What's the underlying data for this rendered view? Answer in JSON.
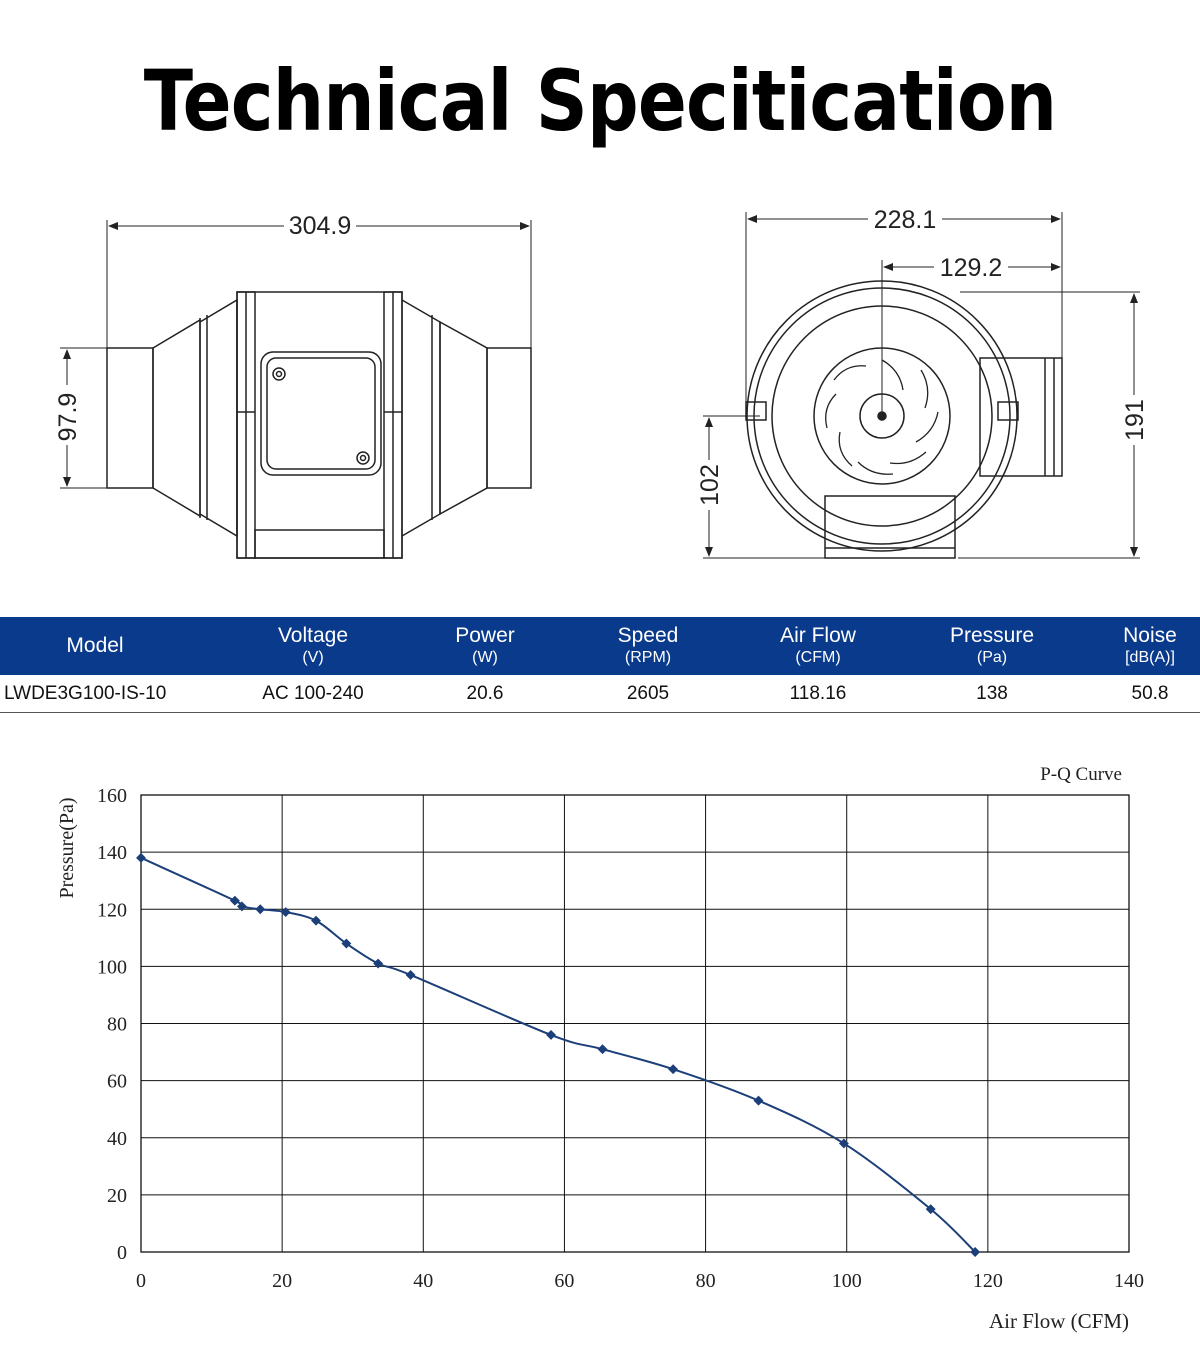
{
  "title": "Technical Specitication",
  "dimensions": {
    "side_length": "304.9",
    "side_diameter": "97.9",
    "front_width": "228.1",
    "front_center": "129.2",
    "front_height": "191",
    "front_axis_height": "102"
  },
  "spec_table": {
    "columns": [
      {
        "label": "Model",
        "unit": ""
      },
      {
        "label": "Voltage",
        "unit": "(V)"
      },
      {
        "label": "Power",
        "unit": "(W)"
      },
      {
        "label": "Speed",
        "unit": "(RPM)"
      },
      {
        "label": "Air Flow",
        "unit": "(CFM)"
      },
      {
        "label": "Pressure",
        "unit": "(Pa)"
      },
      {
        "label": "Noise",
        "unit": "[dB(A)]"
      }
    ],
    "row": [
      "LWDE3G100-IS-10",
      "AC 100-240",
      "20.6",
      "2605",
      "118.16",
      "138",
      "50.8"
    ],
    "header_color": "#0a3a8c"
  },
  "chart_data": {
    "type": "line",
    "title": "P-Q Curve",
    "xlabel": "Air Flow (CFM)",
    "ylabel": "Pressure(Pa)",
    "xlim": [
      0,
      140
    ],
    "ylim": [
      0,
      160
    ],
    "xticks": [
      0,
      20,
      40,
      60,
      80,
      100,
      120,
      140
    ],
    "yticks": [
      0,
      20,
      40,
      60,
      80,
      100,
      120,
      140,
      160
    ],
    "grid": true,
    "line_color": "#1c3f7a",
    "series": [
      {
        "x": [
          0,
          13.3,
          14.3,
          16.9,
          20.5,
          24.8,
          29.1,
          33.6,
          38.2,
          58.1,
          65.4,
          75.4,
          87.5,
          99.6,
          111.9,
          118.2
        ],
        "y": [
          138,
          123,
          121,
          120,
          119,
          116,
          108,
          101,
          97,
          76,
          71,
          64,
          53,
          38,
          15,
          0
        ]
      }
    ]
  }
}
